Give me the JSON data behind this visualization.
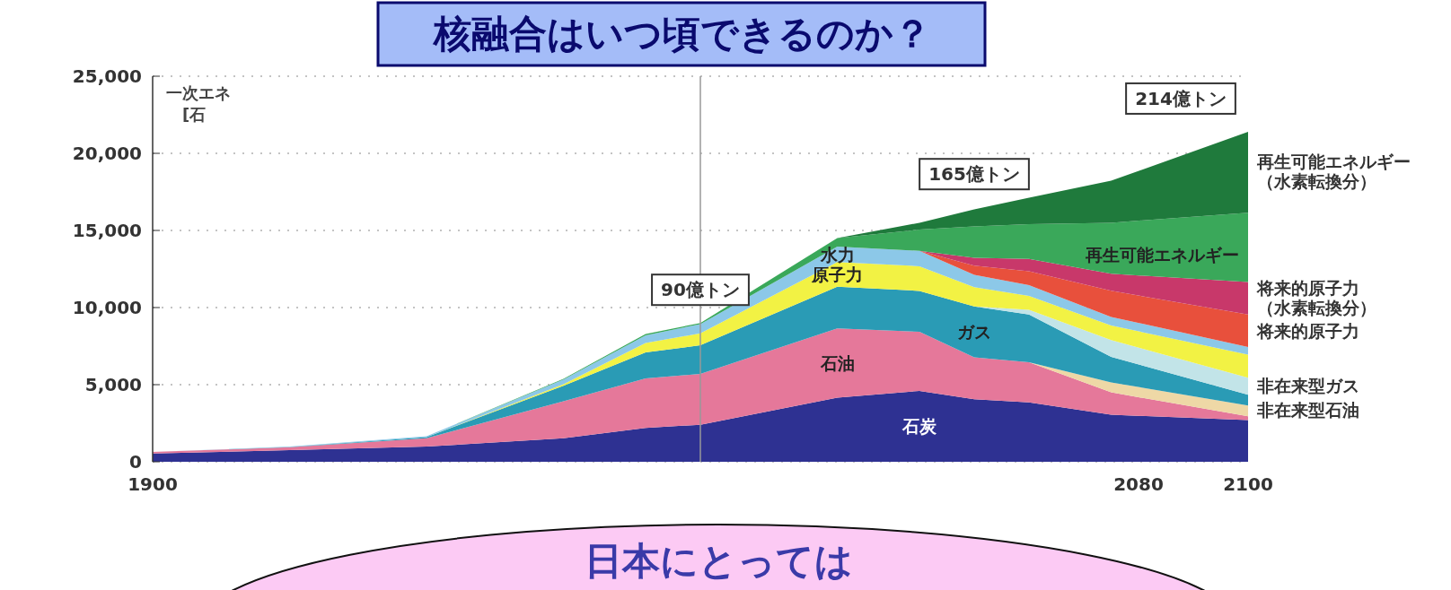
{
  "chart_data": {
    "type": "area",
    "stacked": true,
    "title": "核融合はいつ頃できるのか？",
    "x": [
      1900,
      1925,
      1950,
      1975,
      1990,
      2000,
      2025,
      2040,
      2050,
      2060,
      2075,
      2100
    ],
    "series": [
      {
        "name": "石炭",
        "color": "#2e3192",
        "values": [
          540,
          750,
          980,
          1530,
          2200,
          2400,
          4150,
          4600,
          4050,
          3850,
          3050,
          2700
        ]
      },
      {
        "name": "石油",
        "color": "#e5789a",
        "values": [
          100,
          190,
          550,
          2400,
          3200,
          3300,
          4500,
          3830,
          2720,
          2600,
          1450,
          250
        ]
      },
      {
        "name": "非在来型石油",
        "color": "#eed8a6",
        "values": [
          null,
          null,
          null,
          null,
          null,
          null,
          null,
          null,
          null,
          0,
          650,
          700
        ]
      },
      {
        "name": "ガス",
        "color": "#2a9bb5",
        "values": [
          0,
          20,
          70,
          1000,
          1700,
          1850,
          2700,
          2650,
          3300,
          3100,
          1650,
          700
        ]
      },
      {
        "name": "非在来型ガス",
        "color": "#c2e4e8",
        "values": [
          null,
          null,
          null,
          null,
          null,
          null,
          null,
          null,
          0,
          300,
          1090,
          1100
        ]
      },
      {
        "name": "原子力",
        "color": "#f2f244",
        "values": [
          null,
          null,
          0,
          100,
          600,
          780,
          1600,
          1600,
          1250,
          900,
          950,
          1500
        ]
      },
      {
        "name": "水力",
        "color": "#8cc8e8",
        "values": [
          0,
          20,
          50,
          300,
          500,
          600,
          1000,
          1000,
          800,
          700,
          550,
          500
        ]
      },
      {
        "name": "将来的原子力",
        "color": "#e8503c",
        "values": [
          null,
          null,
          null,
          null,
          null,
          null,
          null,
          0,
          600,
          900,
          1700,
          2100
        ]
      },
      {
        "name": "将来的原子力（水素転換分）",
        "color": "#c8386a",
        "values": [
          null,
          null,
          null,
          null,
          null,
          null,
          null,
          0,
          500,
          800,
          1100,
          2100
        ]
      },
      {
        "name": "再生可能エネルギー",
        "color": "#3aa85a",
        "values": [
          null,
          null,
          0,
          50,
          80,
          70,
          550,
          1380,
          2050,
          2250,
          3310,
          4500
        ]
      },
      {
        "name": "再生可能エネルギー（水素転換分）",
        "color": "#1f7a3c",
        "values": [
          null,
          null,
          null,
          null,
          null,
          null,
          0,
          440,
          1100,
          1730,
          2720,
          5250
        ]
      }
    ],
    "xlim": [
      1900,
      2100
    ],
    "ylim": [
      0,
      25000
    ],
    "xticks": [
      1900,
      2080,
      2100
    ],
    "yticks": [
      {
        "value": 0,
        "label": "0"
      },
      {
        "value": 5000,
        "label": "5,000"
      },
      {
        "value": 10000,
        "label": "10,000"
      },
      {
        "value": 15000,
        "label": "15,000"
      },
      {
        "value": 20000,
        "label": "20,000"
      },
      {
        "value": 25000,
        "label": "25,000"
      }
    ],
    "grid": "y",
    "ref_lines": [
      {
        "axis": "x",
        "value": 2000,
        "color": "#999999"
      }
    ],
    "annotations": [
      "一次エネ",
      "[石",
      {
        "text": "90億トン",
        "x": 2000,
        "y": 9000
      },
      {
        "text": "165億トン",
        "x": 2050,
        "y": 16500
      },
      {
        "text": "214億トン",
        "x": 2100,
        "y": 21400
      },
      "日本にとっては"
    ]
  }
}
